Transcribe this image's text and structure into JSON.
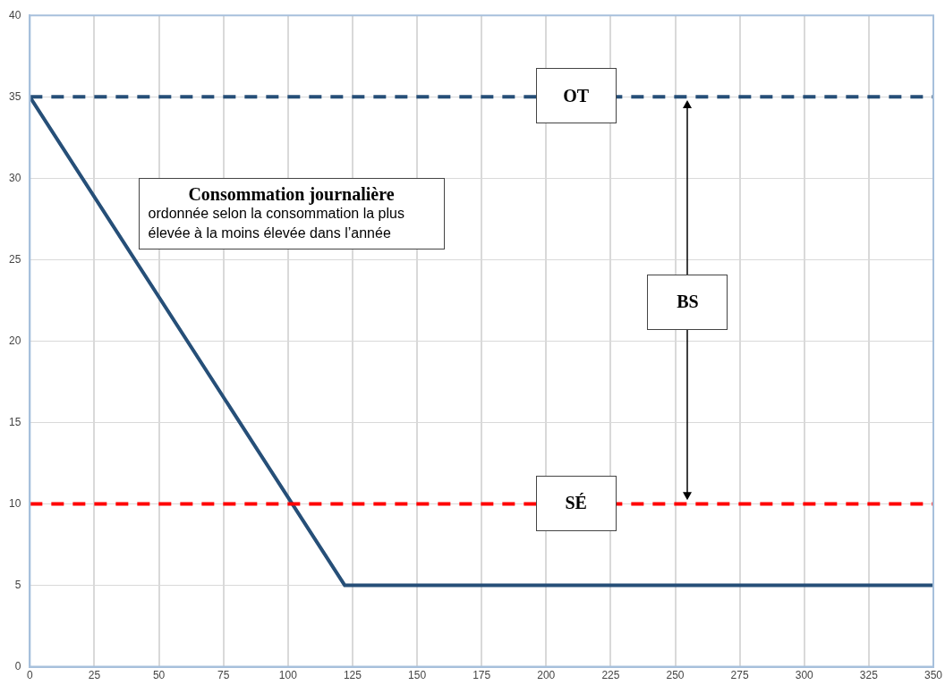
{
  "chart_data": {
    "type": "line",
    "series": [
      {
        "color": "#264f78",
        "x": [
          0,
          122,
          350
        ],
        "values": [
          35,
          5,
          5
        ]
      }
    ],
    "xlim": [
      0,
      350
    ],
    "xticks": [
      0,
      25,
      50,
      75,
      100,
      125,
      150,
      175,
      200,
      225,
      250,
      275,
      300,
      325,
      350
    ],
    "ylim": [
      0,
      40
    ],
    "yticks": [
      0,
      5,
      10,
      15,
      20,
      25,
      30,
      35,
      40
    ],
    "grid": true,
    "legend": false,
    "marker": "none",
    "line_style": "solid",
    "ref_lines": [
      {
        "axis": "y",
        "value": 35,
        "label": "OT",
        "color": "#264f78",
        "line_style": "dashed"
      },
      {
        "axis": "y",
        "value": 10,
        "label": "SÉ",
        "color": "#ff0000",
        "line_style": "dashed"
      }
    ],
    "annotations": [
      "Consommation journalière\nordonnée selon la consommation la plus élevée à la moins élevée dans l’année",
      "BS"
    ]
  }
}
